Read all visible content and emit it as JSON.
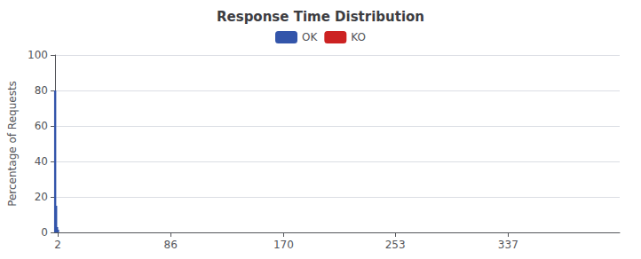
{
  "chart_data": {
    "type": "bar",
    "title": "Response Time Distribution",
    "ylabel": "Percentage of Requests",
    "x": [
      1.0,
      1.7,
      2.4,
      3.1
    ],
    "series": [
      {
        "name": "OK",
        "color": "#3355aa",
        "values": [
          80,
          15,
          3,
          1.5
        ]
      },
      {
        "name": "KO",
        "color": "#cc2222",
        "values": [
          null,
          null,
          null,
          null
        ]
      }
    ],
    "xlim": [
      0,
      420
    ],
    "xticks": [
      2,
      86,
      170,
      253,
      337
    ],
    "ylim": [
      0,
      100
    ],
    "yticks": [
      0,
      20,
      40,
      60,
      80,
      100
    ],
    "grid": true,
    "legend": "top"
  }
}
